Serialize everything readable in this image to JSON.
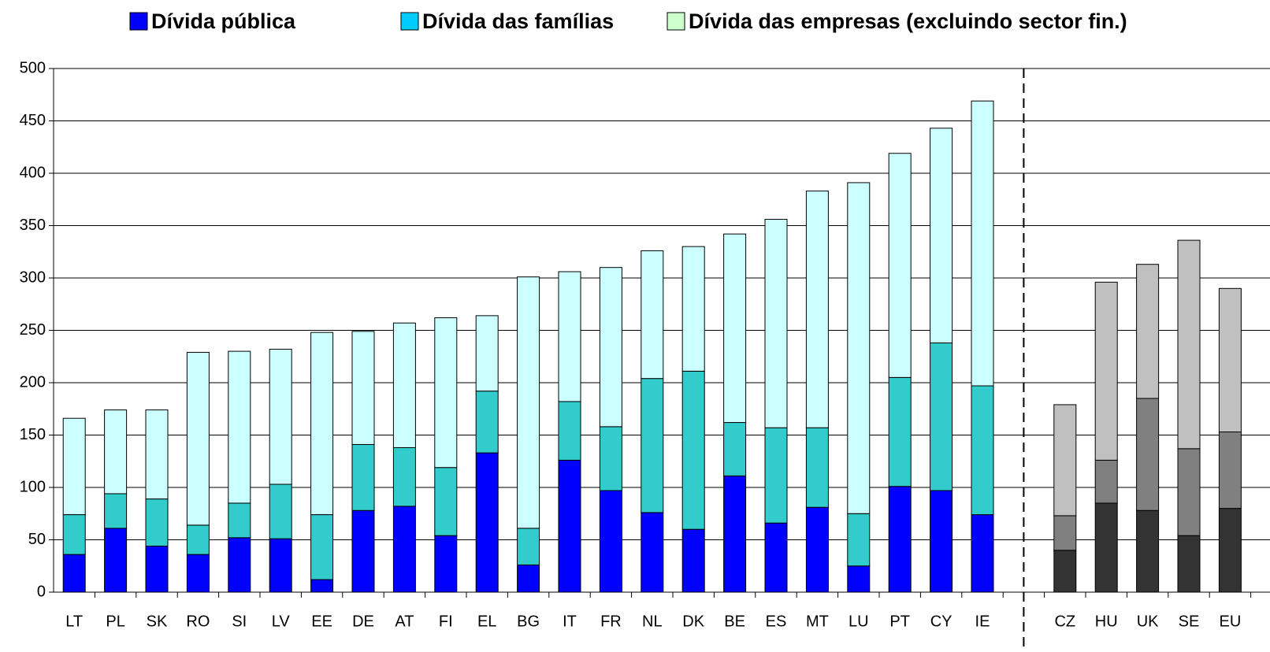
{
  "chart_data": {
    "type": "stacked_bar",
    "categories": [
      "LT",
      "PL",
      "SK",
      "RO",
      "SI",
      "LV",
      "EE",
      "DE",
      "AT",
      "FI",
      "EL",
      "BG",
      "IT",
      "FR",
      "NL",
      "DK",
      "BE",
      "ES",
      "MT",
      "LU",
      "PT",
      "CY",
      "IE",
      null,
      "CZ",
      "HU",
      "UK",
      "SE",
      "EU"
    ],
    "series": [
      {
        "name": "Dívida pública",
        "color": "#0000ff",
        "legend_color": "#0000ff",
        "second_group_color": "#333333",
        "values": [
          36,
          61,
          44,
          36,
          52,
          51,
          12,
          78,
          82,
          54,
          133,
          26,
          126,
          97,
          76,
          60,
          111,
          66,
          81,
          25,
          101,
          97,
          74,
          null,
          40,
          85,
          78,
          54,
          80
        ]
      },
      {
        "name": "Dívida das famílias",
        "color": "#33cccc",
        "legend_color": "#00ccff",
        "second_group_color": "#808080",
        "values": [
          38,
          33,
          45,
          28,
          33,
          52,
          62,
          63,
          56,
          65,
          59,
          35,
          56,
          61,
          128,
          151,
          51,
          91,
          76,
          50,
          104,
          141,
          123,
          null,
          33,
          41,
          107,
          83,
          73
        ]
      },
      {
        "name": "Dívida das empresas (excluindo sector fin.)",
        "color": "#ccffff",
        "legend_color": "#ccffcc",
        "second_group_color": "#c0c0c0",
        "values": [
          92,
          80,
          85,
          165,
          145,
          129,
          174,
          108,
          119,
          143,
          72,
          240,
          124,
          152,
          122,
          119,
          180,
          199,
          226,
          316,
          214,
          205,
          272,
          null,
          106,
          170,
          128,
          199,
          137
        ]
      }
    ],
    "ylim": [
      0,
      500
    ],
    "yticks": [
      0,
      50,
      100,
      150,
      200,
      250,
      300,
      350,
      400,
      450,
      500
    ],
    "grid": true,
    "legend": "top"
  }
}
